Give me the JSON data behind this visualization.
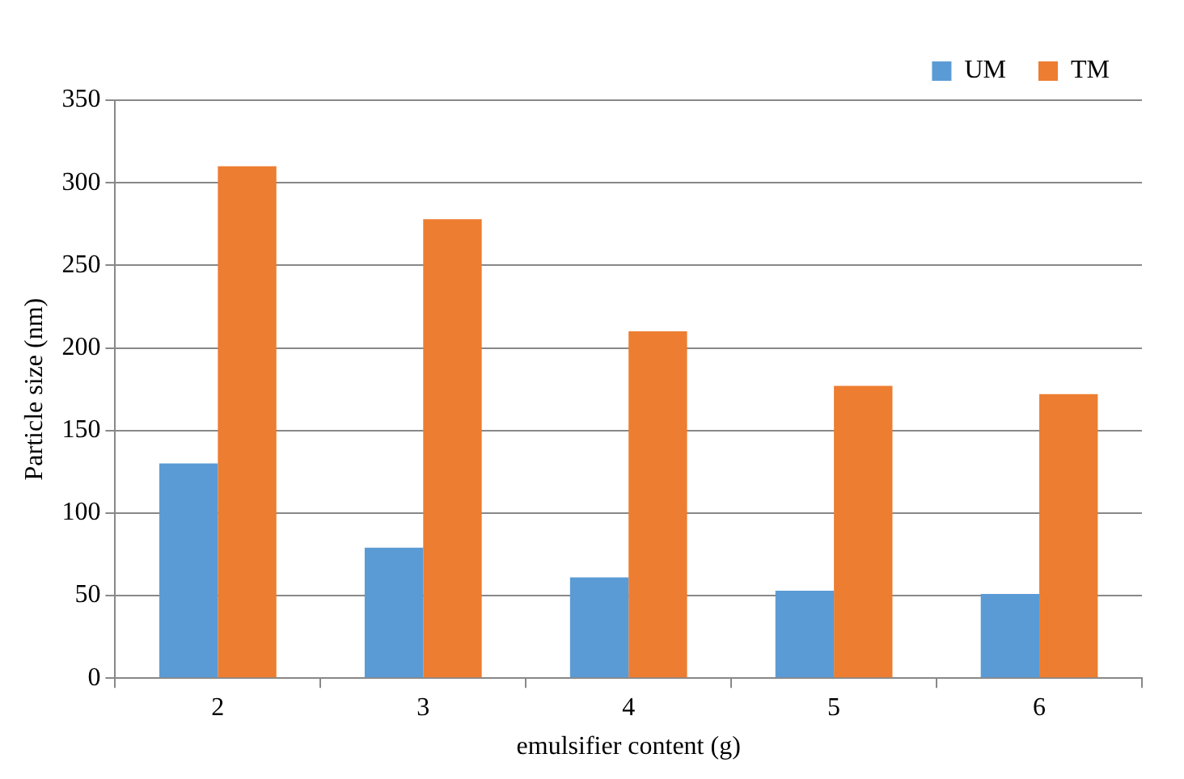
{
  "chart_data": {
    "type": "bar",
    "xlabel": "emulsifier content (g)",
    "ylabel": "Particle size (nm)",
    "categories": [
      "2",
      "3",
      "4",
      "5",
      "6"
    ],
    "series": [
      {
        "name": "UM",
        "color": "#5b9bd5",
        "values": [
          130,
          79,
          61,
          53,
          51
        ]
      },
      {
        "name": "TM",
        "color": "#ed7d31",
        "values": [
          310,
          278,
          210,
          177,
          172
        ]
      }
    ],
    "ylim": [
      0,
      350
    ],
    "yticks": [
      0,
      50,
      100,
      150,
      200,
      250,
      300,
      350
    ],
    "grid": "y",
    "legend": "top right"
  }
}
